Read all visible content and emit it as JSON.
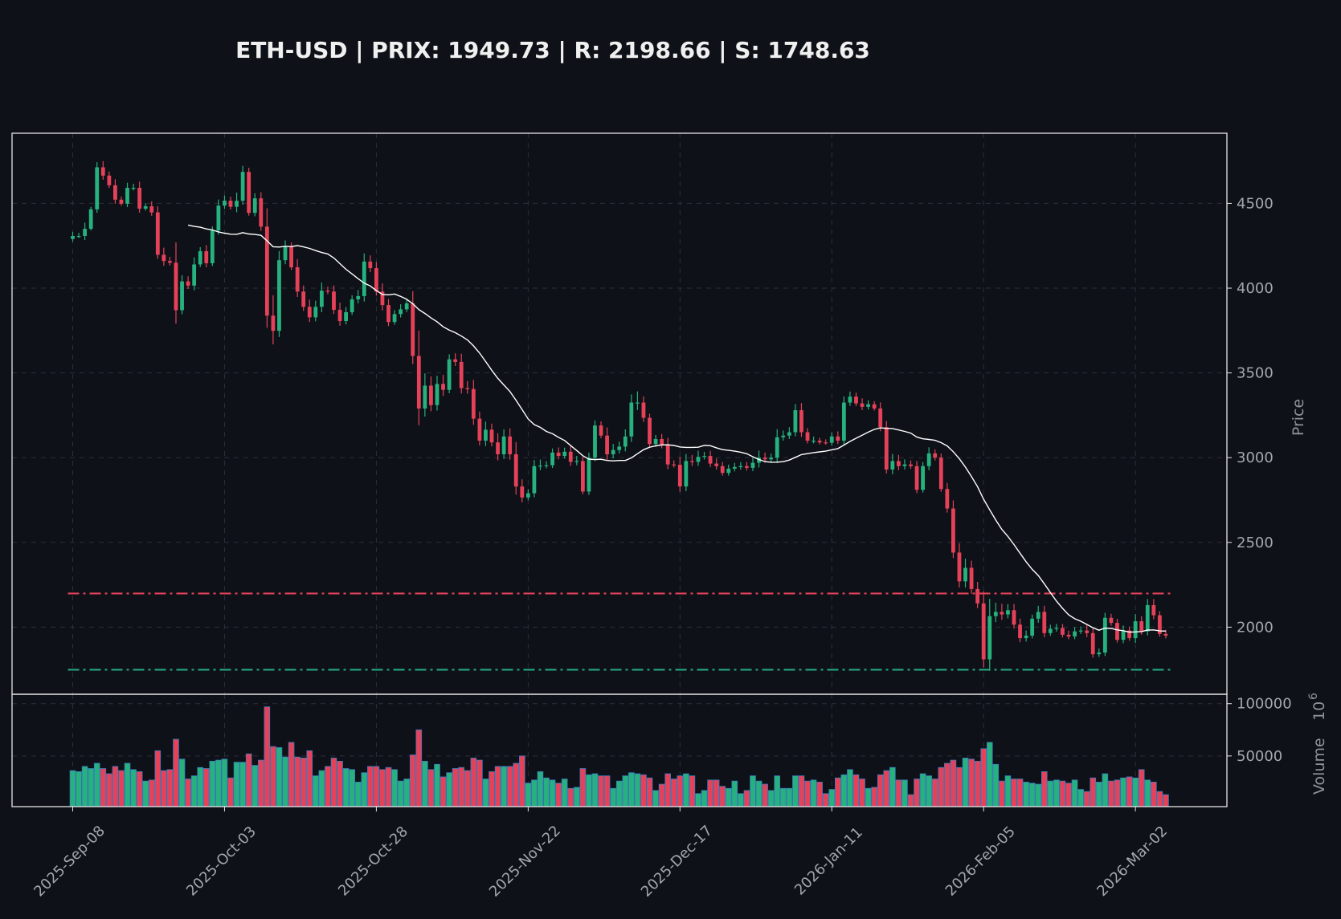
{
  "title": "ETH-USD | PRIX: 1949.73 | R: 2198.66 | S: 1748.63",
  "chart_data": {
    "type": "candlestick",
    "symbol": "ETH-USD",
    "price": 1949.73,
    "resistance": 2198.66,
    "support": 1748.63,
    "first_open": 4290,
    "close": [
      4308,
      4308,
      4350,
      4465,
      4713,
      4664,
      4607,
      4522,
      4498,
      4592,
      4592,
      4469,
      4483,
      4447,
      4197,
      4160,
      4150,
      3870,
      4040,
      4015,
      4140,
      4218,
      4147,
      4340,
      4487,
      4516,
      4480,
      4516,
      4686,
      4444,
      4530,
      4363,
      3838,
      3748,
      4165,
      4246,
      4123,
      3980,
      3890,
      3828,
      3890,
      3985,
      3980,
      3872,
      3806,
      3858,
      3934,
      3953,
      4157,
      4118,
      3980,
      3900,
      3800,
      3847,
      3875,
      3910,
      3600,
      3290,
      3425,
      3310,
      3435,
      3400,
      3580,
      3565,
      3410,
      3405,
      3230,
      3100,
      3165,
      3090,
      3020,
      3125,
      3020,
      2830,
      2765,
      2790,
      2950,
      2953,
      2955,
      3030,
      3010,
      3035,
      2975,
      2980,
      2800,
      3000,
      3190,
      3130,
      3020,
      3045,
      3065,
      3125,
      3325,
      3325,
      3235,
      3080,
      3110,
      3075,
      2960,
      2958,
      2830,
      2980,
      2975,
      3005,
      3010,
      2965,
      2950,
      2910,
      2935,
      2945,
      2950,
      2940,
      2970,
      3000,
      2990,
      3000,
      3120,
      3130,
      3150,
      3280,
      3150,
      3100,
      3100,
      3090,
      3088,
      3125,
      3100,
      3325,
      3360,
      3320,
      3300,
      3315,
      3290,
      3180,
      2930,
      2980,
      2950,
      2960,
      2950,
      2810,
      2950,
      3025,
      3000,
      2815,
      2700,
      2440,
      2270,
      2350,
      2225,
      2140,
      1810,
      2065,
      2090,
      2075,
      2100,
      2015,
      1935,
      1950,
      2050,
      2090,
      1965,
      1990,
      1995,
      1955,
      1945,
      1975,
      1980,
      1965,
      1840,
      1850,
      2055,
      2025,
      1925,
      1980,
      1935,
      2035,
      1975,
      2130,
      2070,
      1960,
      1949.73
    ],
    "wick": [
      40,
      30,
      60,
      25,
      50,
      60,
      40,
      60,
      30,
      50,
      40,
      60,
      30,
      50,
      60,
      70,
      40,
      200,
      60,
      50,
      70,
      40,
      60,
      40,
      60,
      50,
      40,
      80,
      60,
      40,
      50,
      60,
      180,
      200,
      90,
      60,
      40,
      80,
      60,
      70,
      60,
      80,
      40,
      60,
      70,
      50,
      40,
      60,
      80,
      60,
      60,
      80,
      60,
      40,
      50,
      40,
      120,
      250,
      120,
      90,
      80,
      90,
      50,
      60,
      80,
      70,
      90,
      70,
      80,
      60,
      90,
      70,
      80,
      120,
      70,
      40,
      60,
      60,
      40,
      40,
      50,
      40,
      60,
      50,
      40,
      50,
      50,
      40,
      80,
      60,
      50,
      70,
      80,
      110,
      60,
      40,
      40,
      50,
      70,
      40,
      80,
      70,
      60,
      60,
      40,
      50,
      50,
      40,
      40,
      40,
      40,
      40,
      50,
      70,
      50,
      40,
      80,
      50,
      50,
      60,
      70,
      40,
      40,
      30,
      30,
      40,
      50,
      60,
      50,
      40,
      50,
      40,
      30,
      60,
      60,
      70,
      60,
      50,
      40,
      50,
      40,
      60,
      40,
      40,
      60,
      80,
      90,
      90,
      70,
      70,
      120,
      170,
      90,
      80,
      60,
      60,
      60,
      50,
      40,
      60,
      60,
      40,
      40,
      40,
      40,
      40,
      40,
      60,
      50,
      40,
      50,
      40,
      40,
      50,
      40,
      70,
      50,
      60,
      60,
      40,
      40
    ],
    "volume": [
      36000,
      35000,
      40000,
      38000,
      43000,
      38000,
      33000,
      40000,
      36000,
      43000,
      37000,
      35000,
      26000,
      27000,
      55000,
      36000,
      37000,
      66000,
      47000,
      28000,
      31000,
      39000,
      38000,
      45000,
      46000,
      47000,
      29000,
      44000,
      44000,
      52000,
      41000,
      46000,
      97000,
      59000,
      58000,
      49000,
      63000,
      49000,
      48000,
      55000,
      31000,
      36000,
      40000,
      48000,
      45000,
      38000,
      37000,
      25000,
      34000,
      40000,
      40000,
      37000,
      39000,
      37000,
      26000,
      28000,
      51000,
      75000,
      45000,
      37000,
      42000,
      30000,
      34000,
      38000,
      39000,
      36000,
      48000,
      46000,
      28000,
      35000,
      40000,
      40000,
      40000,
      43000,
      50000,
      24000,
      27000,
      35000,
      29000,
      27000,
      24000,
      28000,
      19000,
      20000,
      38000,
      32000,
      33000,
      31000,
      31000,
      19000,
      26000,
      31000,
      34000,
      33000,
      32000,
      29000,
      17000,
      23000,
      33000,
      28000,
      31000,
      33000,
      31000,
      14000,
      17000,
      27000,
      27000,
      21000,
      19000,
      26000,
      14000,
      17000,
      31000,
      26000,
      23000,
      17000,
      31000,
      19000,
      19000,
      31000,
      31000,
      26000,
      27000,
      25000,
      14000,
      18000,
      29000,
      32000,
      37000,
      32000,
      28000,
      19000,
      20000,
      32000,
      36000,
      39000,
      27000,
      27000,
      13000,
      28000,
      33000,
      31000,
      28000,
      39000,
      43000,
      46000,
      39000,
      48000,
      47000,
      45000,
      57000,
      63000,
      42000,
      26000,
      31000,
      28000,
      28000,
      25000,
      24000,
      23000,
      35000,
      26000,
      27000,
      26000,
      24000,
      27000,
      18000,
      16000,
      29000,
      25000,
      33000,
      26000,
      27000,
      29000,
      30000,
      29000,
      37000,
      27000,
      25000,
      16000,
      13000
    ],
    "moving_average_period": 20,
    "price_ylim": [
      1604,
      4914
    ],
    "volume_ylim": [
      1540,
      109000
    ],
    "price_ticks": [
      2000,
      2500,
      3000,
      3500,
      4000,
      4500
    ],
    "volume_ticks": [
      50000,
      100000
    ],
    "x_ticks": [
      {
        "index": 0,
        "label": "2025-Sep-08"
      },
      {
        "index": 25,
        "label": "2025-Oct-03"
      },
      {
        "index": 50,
        "label": "2025-Oct-28"
      },
      {
        "index": 75,
        "label": "2025-Nov-22"
      },
      {
        "index": 100,
        "label": "2025-Dec-17"
      },
      {
        "index": 125,
        "label": "2026-Jan-11"
      },
      {
        "index": 150,
        "label": "2026-Feb-05"
      },
      {
        "index": 175,
        "label": "2026-Mar-02"
      }
    ],
    "ylabel": "Price",
    "volume_label": "Volume",
    "volume_exponent": "10",
    "volume_exponent_power": "6",
    "grid": true,
    "colors": {
      "background": "#0e1117",
      "up": "#26b17f",
      "down": "#e5425a",
      "volume_edge": "#3b7bbf",
      "ma": "#ffffff",
      "resistance": "#e5425a",
      "support": "#26a67f",
      "grid": "#2b2f3a",
      "spine": "#e6e6e6"
    }
  }
}
